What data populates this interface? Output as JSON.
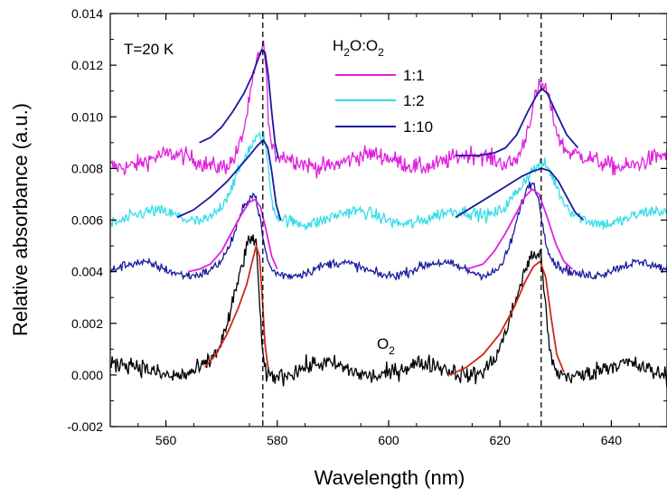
{
  "chart_data": {
    "type": "line",
    "xlabel": "Wavelength (nm)",
    "ylabel": "Relative absorbance (a.u.)",
    "xlim": [
      550,
      650
    ],
    "ylim": [
      -0.002,
      0.014
    ],
    "x_ticks": [
      560,
      580,
      600,
      620,
      640
    ],
    "x_tick_labels": [
      "560",
      "580",
      "600",
      "620",
      "640"
    ],
    "y_ticks": [
      -0.002,
      0.0,
      0.002,
      0.004,
      0.006,
      0.008,
      0.01,
      0.012,
      0.014
    ],
    "y_tick_labels": [
      "-0.002",
      "0.000",
      "0.002",
      "0.004",
      "0.006",
      "0.008",
      "0.010",
      "0.012",
      "0.014"
    ],
    "grid": false,
    "reference_lines_x": [
      577.4,
      627.4
    ],
    "annotations": {
      "temperature": "T=20 K",
      "o2_label_main": "O",
      "o2_label_sub": "2"
    },
    "legend": {
      "placement": "top-center",
      "title_parts": [
        "H",
        "2",
        "O:O",
        "2"
      ],
      "entries": [
        {
          "label": "1:1",
          "color": "#e020e0"
        },
        {
          "label": "1:2",
          "color": "#33dde8"
        },
        {
          "label": "1:10",
          "color": "#1a1a9e"
        }
      ]
    },
    "series": [
      {
        "name": "1:1",
        "color": "#e020e0",
        "baseline": 0.0083,
        "noise": 0.00035,
        "peaks": [
          {
            "center": 577.5,
            "height": 0.0042,
            "width_left": 3.2,
            "width_right": 0.9
          },
          {
            "center": 627.5,
            "height": 0.003,
            "width_left": 3.0,
            "width_right": 2.6
          }
        ],
        "fits": [
          {
            "x": [
              566,
              568,
              570,
              572,
              574,
              575.5,
              576.5,
              577.2,
              577.8,
              578.4,
              579.0,
              579.6,
              580.2
            ],
            "y": [
              0.009,
              0.0092,
              0.0096,
              0.0102,
              0.0109,
              0.0116,
              0.0122,
              0.0126,
              0.0125,
              0.0116,
              0.0102,
              0.009,
              0.0084
            ],
            "color": "#1a1a9e"
          },
          {
            "x": [
              612,
              616,
              619,
              621,
              623,
              625,
              626.5,
              627.5,
              628.5,
              630,
              632,
              634
            ],
            "y": [
              0.0085,
              0.0085,
              0.0086,
              0.0088,
              0.0093,
              0.0102,
              0.0108,
              0.0111,
              0.0109,
              0.0102,
              0.0093,
              0.0088
            ],
            "color": "#1a1a9e"
          }
        ]
      },
      {
        "name": "1:2",
        "color": "#33dde8",
        "baseline": 0.0061,
        "noise": 0.00025,
        "peaks": [
          {
            "center": 577.5,
            "height": 0.0029,
            "width_left": 6.0,
            "width_right": 1.2
          },
          {
            "center": 627.5,
            "height": 0.0019,
            "width_left": 6.5,
            "width_right": 3.2
          }
        ],
        "fits": [
          {
            "x": [
              562,
              565,
              568,
              571,
              573,
              575,
              576.5,
              577.5,
              578.3,
              579.0,
              579.8,
              580.6
            ],
            "y": [
              0.0061,
              0.0064,
              0.0069,
              0.0075,
              0.008,
              0.0085,
              0.0089,
              0.0091,
              0.0088,
              0.0079,
              0.0066,
              0.006
            ],
            "color": "#1a1a9e"
          },
          {
            "x": [
              612,
              615,
              618,
              621,
              624,
              626,
              627.5,
              629,
              630.5,
              632,
              633.5,
              635
            ],
            "y": [
              0.0061,
              0.0065,
              0.0069,
              0.0073,
              0.0077,
              0.0079,
              0.008,
              0.0079,
              0.0075,
              0.0069,
              0.0063,
              0.006
            ],
            "color": "#1a1a9e"
          }
        ]
      },
      {
        "name": "1:10",
        "color": "#1a1a9e",
        "baseline": 0.0041,
        "noise": 0.00018,
        "peaks": [
          {
            "center": 575.8,
            "height": 0.0027,
            "width_left": 3.8,
            "width_right": 1.8
          },
          {
            "center": 625.8,
            "height": 0.0031,
            "width_left": 3.8,
            "width_right": 2.2
          }
        ],
        "fits": [
          {
            "x": [
              564,
              566,
              568,
              570,
              572,
              573.5,
              575,
              576,
              577,
              578,
              579,
              580
            ],
            "y": [
              0.004,
              0.0041,
              0.0043,
              0.0048,
              0.0056,
              0.0062,
              0.0067,
              0.0068,
              0.0065,
              0.0056,
              0.0046,
              0.0041
            ],
            "color": "#e020e0"
          },
          {
            "x": [
              614,
              617,
              619,
              621,
              623,
              624.5,
              625.8,
              627,
              628.5,
              630,
              631.5,
              633
            ],
            "y": [
              0.0041,
              0.0043,
              0.0048,
              0.0055,
              0.0063,
              0.0069,
              0.0072,
              0.007,
              0.0061,
              0.0051,
              0.0044,
              0.0041
            ],
            "color": "#e020e0"
          }
        ]
      },
      {
        "name": "O2",
        "color": "#000000",
        "baseline": 0.0002,
        "noise": 0.00035,
        "peaks": [
          {
            "center": 576.0,
            "height": 0.0052,
            "width_left": 4.5,
            "width_right": 1.0
          },
          {
            "center": 627.0,
            "height": 0.0044,
            "width_left": 5.5,
            "width_right": 1.5
          }
        ],
        "fits": [
          {
            "x": [
              567,
              569,
              571,
              573,
              574.5,
              575.5,
              576.2,
              576.8,
              577.3,
              577.8,
              578.4
            ],
            "y": [
              0.0003,
              0.0008,
              0.0016,
              0.0026,
              0.0035,
              0.0044,
              0.005,
              0.0046,
              0.003,
              0.0012,
              0.0002
            ],
            "color": "#cc2a1a"
          },
          {
            "x": [
              611,
              614,
              617,
              620,
              622.5,
              624.5,
              626,
              627.2,
              628.2,
              629.2,
              630.2,
              631.5
            ],
            "y": [
              0.0,
              0.0003,
              0.0008,
              0.0016,
              0.0026,
              0.0036,
              0.0042,
              0.0044,
              0.0038,
              0.0022,
              0.0008,
              0.0001
            ],
            "color": "#cc2a1a"
          }
        ]
      }
    ]
  }
}
